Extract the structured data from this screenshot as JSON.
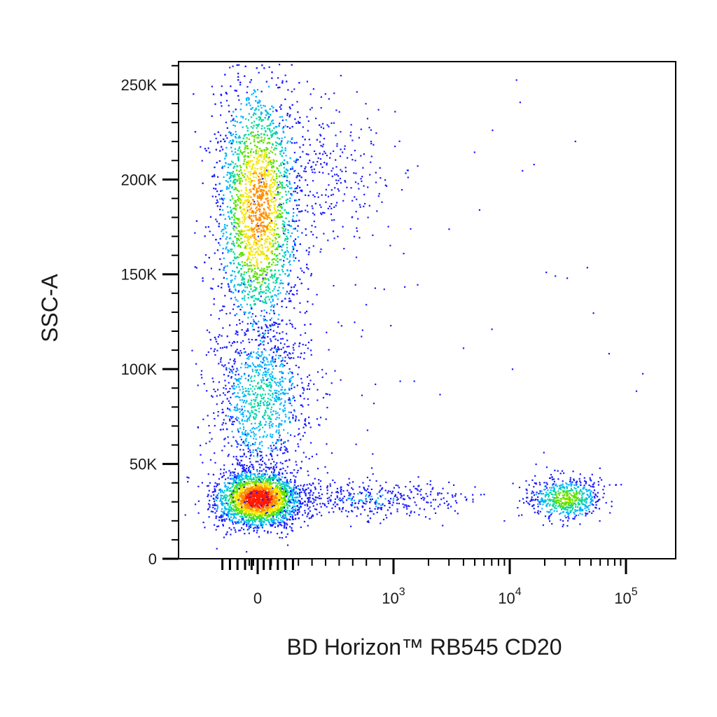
{
  "chart_data": {
    "type": "scatter",
    "title": "",
    "xlabel": "BD Horizon™ RB545 CD20",
    "ylabel": "SSC-A",
    "x_scale": "biexponential",
    "x_ticks": [
      {
        "value": 0,
        "label": "0",
        "exp": ""
      },
      {
        "value": 1000,
        "label": "10",
        "exp": "3"
      },
      {
        "value": 10000,
        "label": "10",
        "exp": "4"
      },
      {
        "value": 100000,
        "label": "10",
        "exp": "5"
      }
    ],
    "y_ticks": [
      {
        "value": 0,
        "label": "0"
      },
      {
        "value": 50000,
        "label": "50K"
      },
      {
        "value": 100000,
        "label": "100K"
      },
      {
        "value": 150000,
        "label": "150K"
      },
      {
        "value": 200000,
        "label": "200K"
      },
      {
        "value": 250000,
        "label": "250K"
      }
    ],
    "ylim": [
      0,
      262144
    ],
    "grid": false,
    "color_map": "density (blue-cyan-green-yellow-red)",
    "populations": [
      {
        "name": "",
        "x_center": 0,
        "y_center": 32000,
        "x_spread": "low",
        "y_spread": 9000,
        "density": "highest"
      },
      {
        "name": "",
        "x_center": 0,
        "y_center": 185000,
        "x_spread": "low",
        "y_spread": 40000,
        "density": "high"
      },
      {
        "name": "",
        "x_center": 0,
        "y_center": 85000,
        "x_spread": "low",
        "y_spread": 22000,
        "density": "low"
      },
      {
        "name": "",
        "x_center": 30000,
        "y_center": 32000,
        "x_spread": "medium",
        "y_spread": 7000,
        "density": "medium"
      },
      {
        "name": "",
        "x_center": 400,
        "y_center": 32000,
        "x_spread": "wide",
        "y_spread": 8000,
        "density": "sparse"
      }
    ]
  }
}
